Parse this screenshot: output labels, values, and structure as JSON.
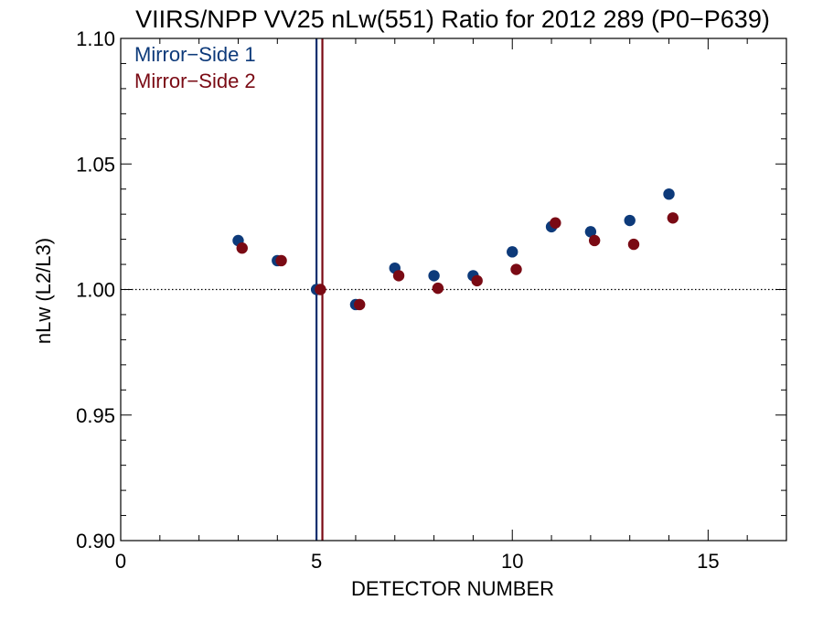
{
  "chart_data": {
    "type": "scatter",
    "title": "VIIRS/NPP VV25 nLw(551) Ratio for 2012 289 (P0−P639)",
    "xlabel": "DETECTOR NUMBER",
    "ylabel": "nLw (L2/L3)",
    "xlim": [
      0,
      17
    ],
    "ylim": [
      0.9,
      1.1
    ],
    "xticks": [
      0,
      5,
      10,
      15
    ],
    "xtick_labels": [
      "0",
      "5",
      "10",
      "15"
    ],
    "yticks": [
      0.9,
      0.95,
      1.0,
      1.05,
      1.1
    ],
    "ytick_labels": [
      "0.90",
      "0.95",
      "1.00",
      "1.05",
      "1.10"
    ],
    "reference_line": {
      "y": 1.0,
      "style": "dotted"
    },
    "vertical_lines": [
      {
        "x": 5.0,
        "color": "#0d2e6e"
      },
      {
        "x": 5.15,
        "color": "#7a0a14"
      }
    ],
    "legend_position": "top-left",
    "series": [
      {
        "name": "Mirror−Side 1",
        "color": "#0d3a7a",
        "x": [
          3,
          4,
          5,
          6,
          7,
          8,
          9,
          10,
          11,
          12,
          13,
          14
        ],
        "y": [
          1.0195,
          1.0115,
          1.0,
          0.994,
          1.0085,
          1.0055,
          1.0055,
          1.015,
          1.025,
          1.023,
          1.0275,
          1.038
        ]
      },
      {
        "name": "Mirror−Side 2",
        "color": "#7a0a14",
        "x": [
          3.1,
          4.1,
          5.1,
          6.1,
          7.1,
          8.1,
          9.1,
          10.1,
          11.1,
          12.1,
          13.1,
          14.1
        ],
        "y": [
          1.0165,
          1.0115,
          1.0,
          0.994,
          1.0055,
          1.0005,
          1.0035,
          1.008,
          1.0265,
          1.0195,
          1.018,
          1.0285
        ]
      }
    ]
  }
}
